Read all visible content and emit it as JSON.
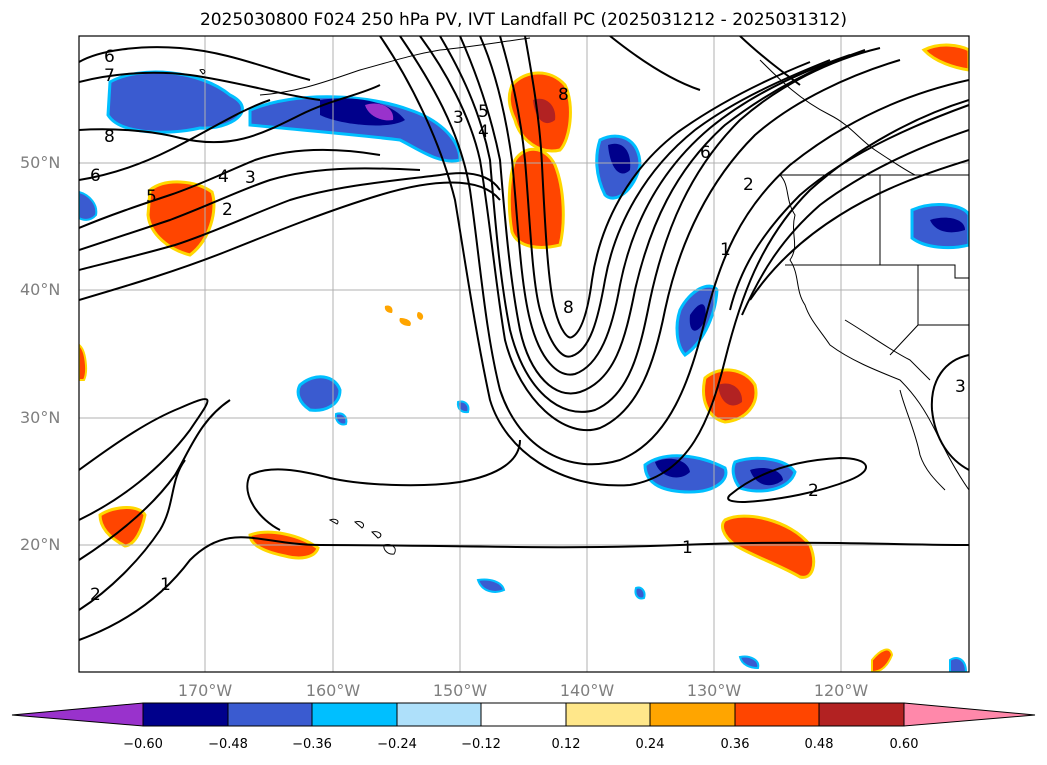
{
  "title": "2025030800 F024 250 hPa PV, IVT Landfall PC (2025031212 - 2025031312)",
  "lat_labels": [
    "50°N",
    "40°N",
    "30°N",
    "20°N"
  ],
  "lon_labels": [
    "170°W",
    "160°W",
    "150°W",
    "140°W",
    "130°W",
    "120°W"
  ],
  "contour_labels": [
    "6",
    "7",
    "8",
    "6",
    "5",
    "4",
    "3",
    "2",
    "5",
    "4",
    "3",
    "8",
    "8",
    "6",
    "2",
    "1",
    "2",
    "1",
    "2",
    "1",
    "3"
  ],
  "colorbar": {
    "ticks": [
      "−0.60",
      "−0.48",
      "−0.36",
      "−0.24",
      "−0.12",
      "0.12",
      "0.24",
      "0.36",
      "0.48",
      "0.60"
    ],
    "colors": [
      "#9932cc",
      "#00008b",
      "#3a5bd0",
      "#00bfff",
      "#aee0fa",
      "#ffffff",
      "#ffe78a",
      "#ffa500",
      "#ff4500",
      "#b22222",
      "#ff88aa"
    ]
  }
}
